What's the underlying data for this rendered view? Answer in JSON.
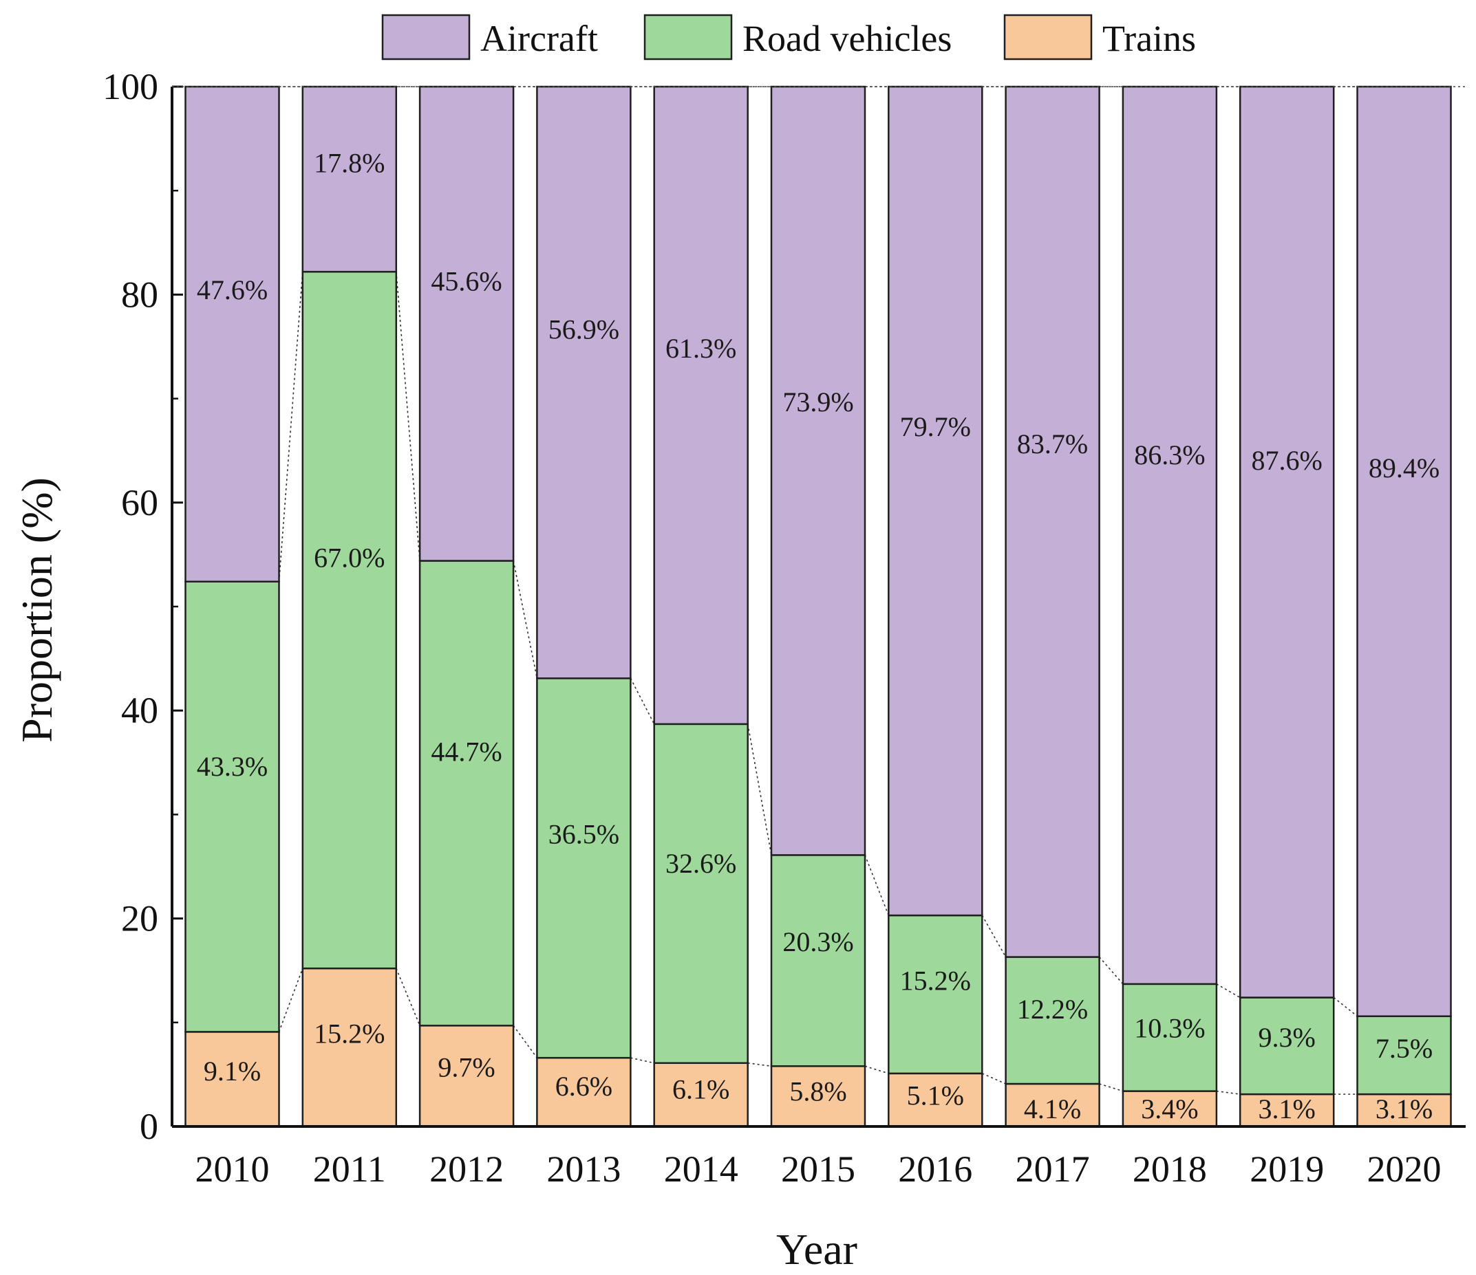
{
  "chart_data": {
    "type": "bar",
    "stacked": true,
    "title": "",
    "xlabel": "Year",
    "ylabel": "Proportion (%)",
    "ylim": [
      0,
      100
    ],
    "yticks": [
      "0",
      "20",
      "40",
      "60",
      "80",
      "100"
    ],
    "legend_position": "top-center",
    "categories": [
      "2010",
      "2011",
      "2012",
      "2013",
      "2014",
      "2015",
      "2016",
      "2017",
      "2018",
      "2019",
      "2020"
    ],
    "series": [
      {
        "key": "trains",
        "name": "Trains",
        "color": "#F9C89A",
        "values": [
          9.1,
          15.2,
          9.7,
          6.6,
          6.1,
          5.8,
          5.1,
          4.1,
          3.4,
          3.1,
          3.1
        ],
        "labels": [
          "9.1%",
          "15.2%",
          "9.7%",
          "6.6%",
          "6.1%",
          "5.8%",
          "5.1%",
          "4.1%",
          "3.4%",
          "3.1%",
          "3.1%"
        ]
      },
      {
        "key": "road",
        "name": "Road vehicles",
        "color": "#9ED99B",
        "values": [
          43.3,
          67.0,
          44.7,
          36.5,
          32.6,
          20.3,
          15.2,
          12.2,
          10.3,
          9.3,
          7.5
        ],
        "labels": [
          "43.3%",
          "67.0%",
          "44.7%",
          "36.5%",
          "32.6%",
          "20.3%",
          "15.2%",
          "12.2%",
          "10.3%",
          "9.3%",
          "7.5%"
        ]
      },
      {
        "key": "aircraft",
        "name": "Aircraft",
        "color": "#C4B0D6",
        "values": [
          47.6,
          17.8,
          45.6,
          56.9,
          61.3,
          73.9,
          79.7,
          83.7,
          86.3,
          87.6,
          89.4
        ],
        "labels": [
          "47.6%",
          "17.8%",
          "45.6%",
          "56.9%",
          "61.3%",
          "73.9%",
          "79.7%",
          "83.7%",
          "86.3%",
          "87.6%",
          "89.4%"
        ]
      }
    ],
    "legend_order": [
      "aircraft",
      "road",
      "trains"
    ]
  }
}
